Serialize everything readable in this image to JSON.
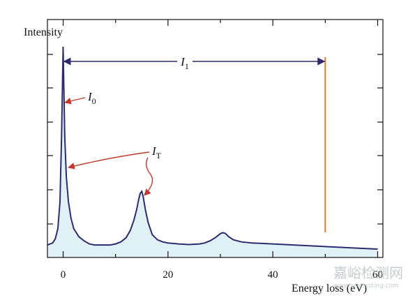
{
  "chart_data": {
    "type": "area",
    "title": "",
    "xlabel": "Energy loss (eV)",
    "ylabel": "Intensity",
    "xlim": [
      -3,
      61
    ],
    "ylim": [
      0,
      1.0
    ],
    "xticks": [
      0,
      20,
      40,
      60
    ],
    "xtick_labels": [
      "0",
      "20",
      "40",
      "60"
    ],
    "grid": false,
    "series": [
      {
        "x": [
          -3,
          -2,
          -1.5,
          -1,
          -0.6,
          -0.3,
          0,
          0.3,
          0.6,
          1,
          1.5,
          2,
          3,
          4,
          5,
          6,
          7,
          8,
          9,
          10,
          11,
          12,
          12.8,
          13.5,
          14,
          14.4,
          14.7,
          15,
          15.3,
          15.7,
          16.2,
          17,
          18,
          19,
          20,
          22,
          24,
          26,
          27,
          28,
          29,
          30,
          30.5,
          31,
          31.6,
          32.5,
          34,
          36,
          40,
          44,
          48,
          52,
          56,
          60
        ],
        "values": [
          0.03,
          0.04,
          0.06,
          0.11,
          0.24,
          0.56,
          0.99,
          0.56,
          0.36,
          0.24,
          0.16,
          0.11,
          0.07,
          0.05,
          0.035,
          0.03,
          0.03,
          0.03,
          0.03,
          0.035,
          0.045,
          0.065,
          0.1,
          0.15,
          0.2,
          0.25,
          0.28,
          0.29,
          0.26,
          0.2,
          0.14,
          0.08,
          0.055,
          0.045,
          0.04,
          0.035,
          0.032,
          0.035,
          0.04,
          0.05,
          0.065,
          0.085,
          0.09,
          0.085,
          0.07,
          0.055,
          0.045,
          0.04,
          0.035,
          0.03,
          0.025,
          0.02,
          0.015,
          0.01
        ]
      }
    ],
    "colors": {
      "curve": "#2c2c6e",
      "fill": "#e0f1f5",
      "arrow_I1": "#2c2c6e",
      "arrows_red": "#c0392b",
      "integration_limit": "#e07b24"
    },
    "annotations": {
      "I1": {
        "main": "I",
        "sub": "1"
      },
      "I0": {
        "main": "I",
        "sub": "0"
      },
      "IT": {
        "main": "I",
        "sub": "T"
      }
    },
    "integration_limit_x": 50
  },
  "watermark": {
    "text": "嘉峪检测网",
    "url": "www.anytesting.com"
  }
}
